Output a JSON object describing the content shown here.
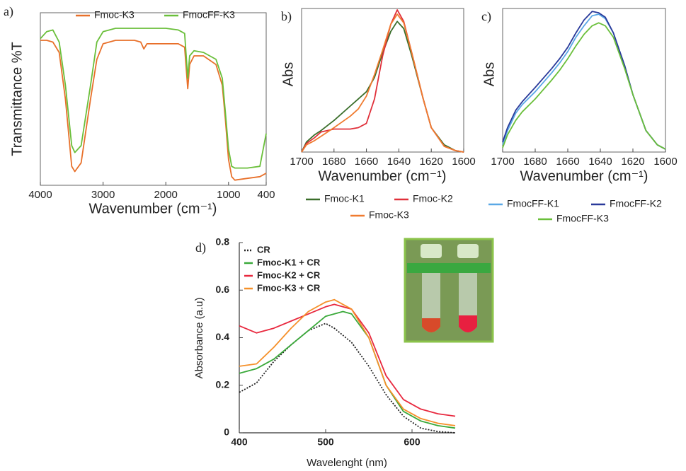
{
  "chart_data": [
    {
      "type": "line",
      "panel": "a)",
      "xlabel": "Wavenumber (cm⁻¹)",
      "ylabel": "Transmittance %T",
      "xlim": [
        4000,
        400
      ],
      "ylim": [
        0,
        100
      ],
      "xticks": [
        4000,
        3000,
        2000,
        1000,
        400
      ],
      "legend": "top",
      "x": [
        4000,
        3900,
        3800,
        3700,
        3600,
        3500,
        3450,
        3350,
        3200,
        3100,
        3000,
        2800,
        2500,
        2400,
        2350,
        2300,
        2000,
        1800,
        1700,
        1650,
        1620,
        1550,
        1400,
        1200,
        1100,
        1050,
        1000,
        950,
        900,
        700,
        500,
        400
      ],
      "series": [
        {
          "name": "Fmoc-K3",
          "color": "#e8702a",
          "values": [
            84,
            84,
            83,
            77,
            50,
            11,
            8,
            13,
            50,
            73,
            82,
            84,
            84,
            83,
            79,
            82,
            82,
            82,
            80,
            56,
            70,
            75,
            75,
            70,
            58,
            38,
            15,
            5,
            3,
            4,
            5,
            7
          ]
        },
        {
          "name": "FmocFF-K3",
          "color": "#6abf3a",
          "values": [
            85,
            89,
            90,
            83,
            58,
            23,
            19,
            23,
            58,
            83,
            89,
            91,
            91,
            91,
            91,
            91,
            91,
            90,
            88,
            62,
            75,
            78,
            77,
            73,
            62,
            42,
            21,
            11,
            10,
            10,
            11,
            30
          ]
        }
      ]
    },
    {
      "type": "line",
      "panel": "b)",
      "xlabel": "Wavenumber (cm⁻¹)",
      "ylabel": "Abs",
      "xlim": [
        1700,
        1600
      ],
      "ylim": [
        0,
        1
      ],
      "xticks": [
        1700,
        1680,
        1660,
        1640,
        1620,
        1600
      ],
      "legend": "below",
      "x": [
        1700,
        1697,
        1692,
        1688,
        1680,
        1670,
        1665,
        1660,
        1655,
        1650,
        1645,
        1641,
        1637,
        1632,
        1625,
        1620,
        1612,
        1605,
        1600
      ],
      "series": [
        {
          "name": "Fmoc-K1",
          "color": "#3a6e2a",
          "values": [
            0,
            0.07,
            0.12,
            0.15,
            0.22,
            0.32,
            0.37,
            0.42,
            0.52,
            0.69,
            0.84,
            0.91,
            0.86,
            0.67,
            0.37,
            0.17,
            0.05,
            0.01,
            0
          ]
        },
        {
          "name": "Fmoc-K2",
          "color": "#e0303a",
          "values": [
            0,
            0.06,
            0.1,
            0.14,
            0.16,
            0.16,
            0.17,
            0.2,
            0.37,
            0.67,
            0.89,
            0.99,
            0.91,
            0.69,
            0.37,
            0.17,
            0.04,
            0.01,
            0
          ]
        },
        {
          "name": "Fmoc-K3",
          "color": "#f07b30",
          "values": [
            0,
            0.05,
            0.08,
            0.11,
            0.17,
            0.25,
            0.3,
            0.39,
            0.54,
            0.71,
            0.89,
            0.96,
            0.9,
            0.69,
            0.37,
            0.17,
            0.04,
            0.01,
            0
          ]
        }
      ]
    },
    {
      "type": "line",
      "panel": "c)",
      "xlabel": "Wavenumber (cm⁻¹)",
      "ylabel": "Abs",
      "xlim": [
        1700,
        1600
      ],
      "ylim": [
        0,
        1
      ],
      "xticks": [
        1700,
        1680,
        1660,
        1640,
        1620,
        1600
      ],
      "legend": "below",
      "x": [
        1700,
        1697,
        1692,
        1688,
        1680,
        1670,
        1665,
        1660,
        1655,
        1650,
        1645,
        1641,
        1637,
        1632,
        1625,
        1620,
        1612,
        1605,
        1600
      ],
      "series": [
        {
          "name": "FmocFF-K1",
          "color": "#5aa8e6",
          "values": [
            0.05,
            0.15,
            0.27,
            0.33,
            0.42,
            0.55,
            0.62,
            0.7,
            0.8,
            0.88,
            0.95,
            0.96,
            0.93,
            0.83,
            0.6,
            0.4,
            0.15,
            0.05,
            0.02
          ]
        },
        {
          "name": "FmocFF-K2",
          "color": "#2a3a9a",
          "values": [
            0.07,
            0.17,
            0.29,
            0.35,
            0.45,
            0.58,
            0.65,
            0.73,
            0.83,
            0.92,
            0.98,
            0.97,
            0.94,
            0.83,
            0.6,
            0.4,
            0.15,
            0.05,
            0.02
          ]
        },
        {
          "name": "FmocFF-K3",
          "color": "#6abf3a",
          "values": [
            0.03,
            0.12,
            0.22,
            0.28,
            0.37,
            0.5,
            0.57,
            0.65,
            0.74,
            0.82,
            0.88,
            0.9,
            0.88,
            0.8,
            0.58,
            0.4,
            0.15,
            0.05,
            0.02
          ]
        }
      ]
    },
    {
      "type": "line",
      "panel": "d)",
      "xlabel": "Wavelenght (nm)",
      "ylabel": "Absorbance (a.u)",
      "xlim": [
        400,
        650
      ],
      "ylim": [
        0,
        0.8
      ],
      "xticks": [
        400,
        500,
        600
      ],
      "yticks": [
        0,
        0.2,
        0.4,
        0.6,
        0.8
      ],
      "legend": "upper left",
      "x": [
        400,
        420,
        440,
        460,
        480,
        500,
        510,
        520,
        530,
        550,
        570,
        590,
        610,
        630,
        650
      ],
      "series": [
        {
          "name": "CR",
          "color": "#222222",
          "style": "dotted",
          "values": [
            0.17,
            0.21,
            0.3,
            0.37,
            0.43,
            0.46,
            0.44,
            0.41,
            0.38,
            0.28,
            0.16,
            0.07,
            0.02,
            0.005,
            0
          ]
        },
        {
          "name": "Fmoc-K1 + CR",
          "color": "#3aa93a",
          "values": [
            0.25,
            0.27,
            0.31,
            0.37,
            0.43,
            0.49,
            0.5,
            0.51,
            0.5,
            0.4,
            0.2,
            0.09,
            0.05,
            0.03,
            0.02
          ]
        },
        {
          "name": "Fmoc-K2 + CR",
          "color": "#e8283e",
          "values": [
            0.45,
            0.42,
            0.44,
            0.47,
            0.5,
            0.53,
            0.54,
            0.53,
            0.52,
            0.42,
            0.24,
            0.14,
            0.1,
            0.08,
            0.07
          ]
        },
        {
          "name": "Fmoc-K3 + CR",
          "color": "#f5902a",
          "values": [
            0.28,
            0.29,
            0.36,
            0.44,
            0.51,
            0.55,
            0.56,
            0.54,
            0.52,
            0.4,
            0.2,
            0.1,
            0.06,
            0.04,
            0.03
          ]
        }
      ]
    }
  ]
}
